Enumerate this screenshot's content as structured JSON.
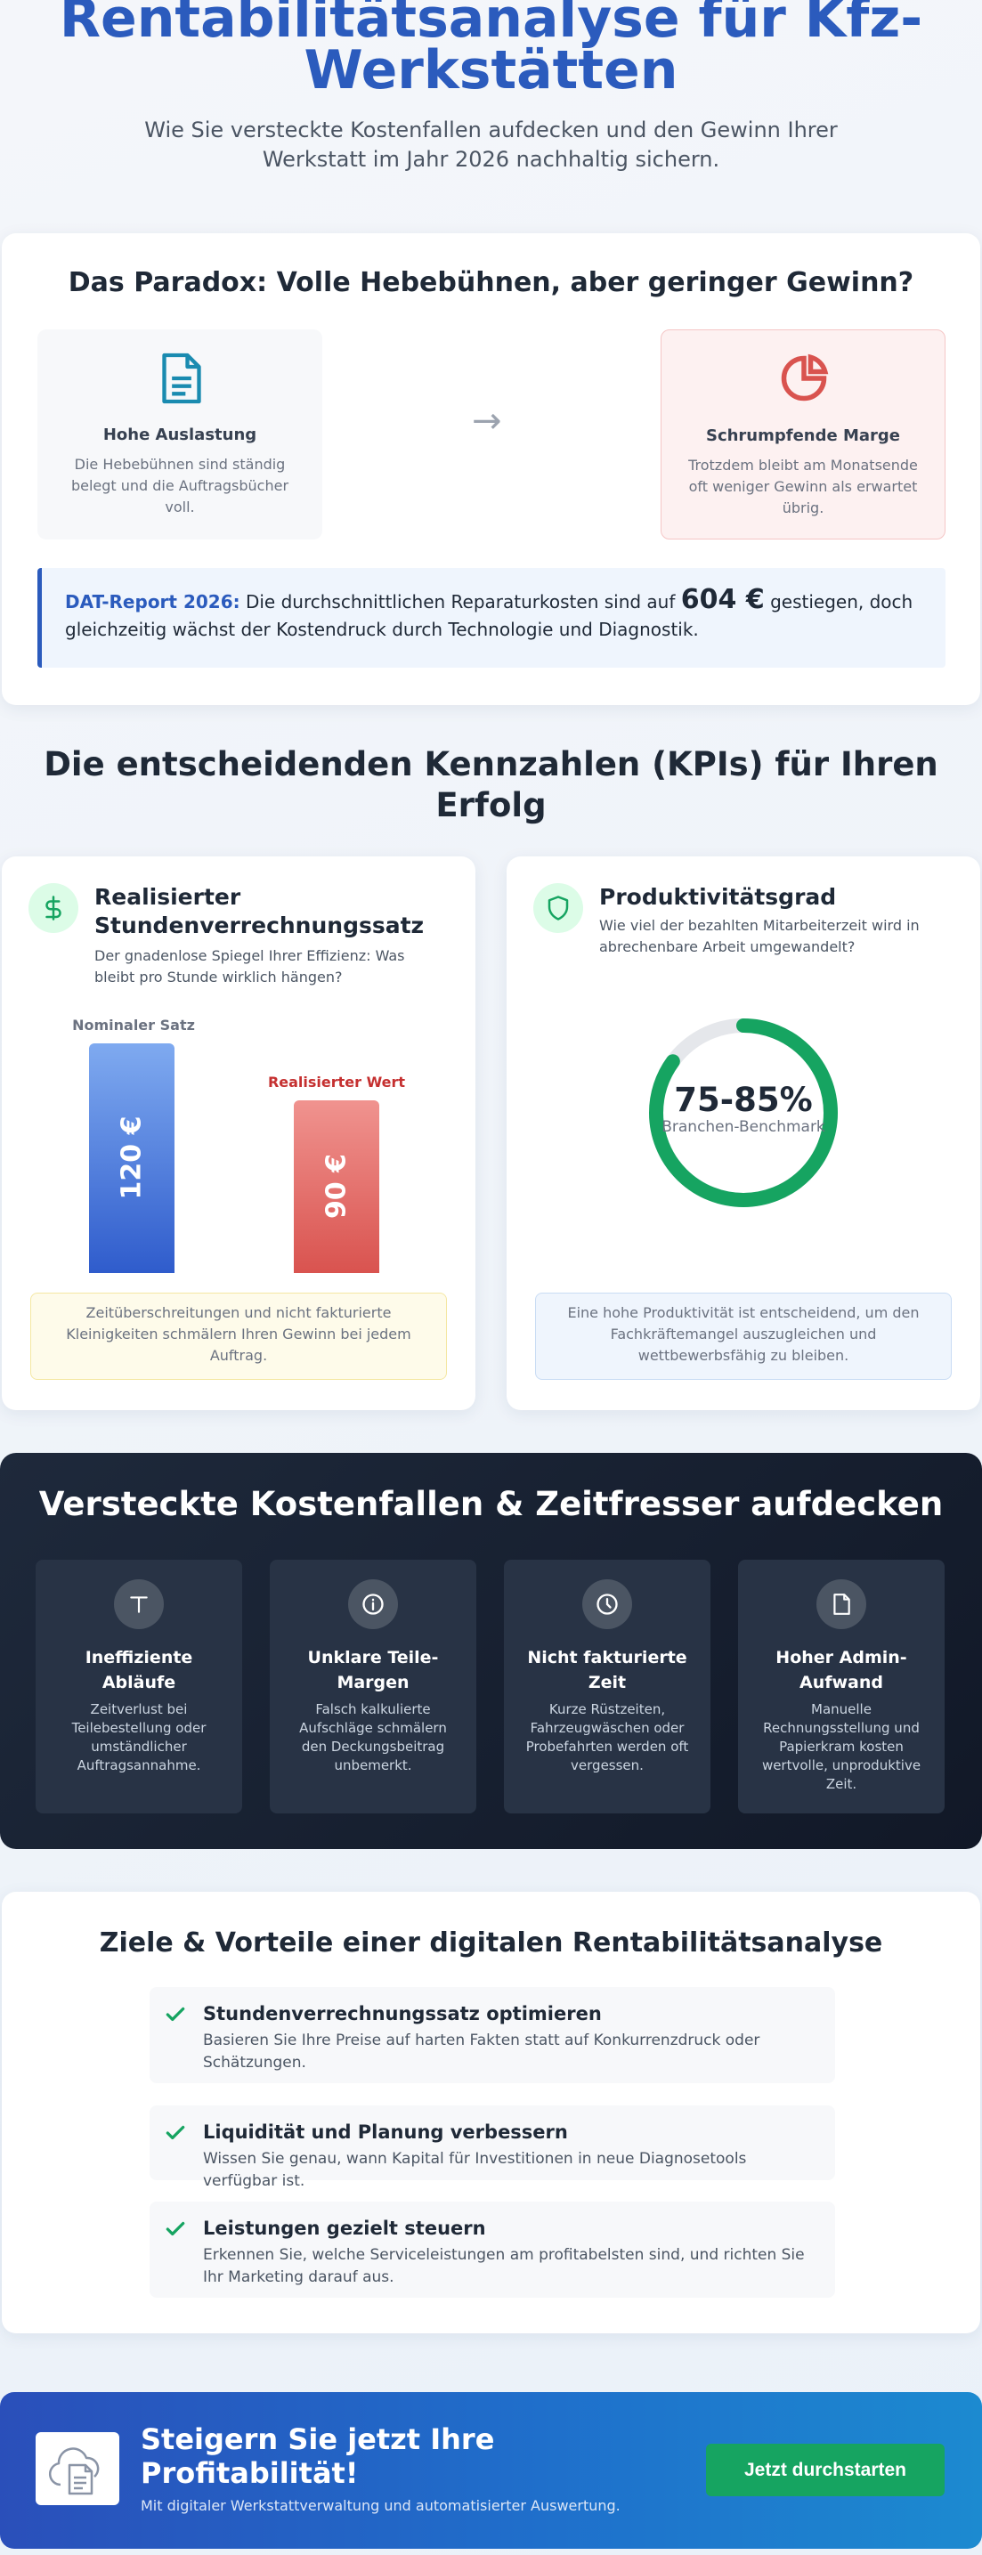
{
  "hero": {
    "title": "Rentabilitätsanalyse für Kfz-Werkstätten",
    "subtitle": "Wie Sie versteckte Kostenfallen aufdecken und den Gewinn Ihrer Werkstatt im Jahr 2026 nachhaltig sichern."
  },
  "paradox": {
    "heading": "Das Paradox: Volle Hebebühnen, aber geringer Gewinn?",
    "left": {
      "icon": "document-icon",
      "title": "Hohe Auslastung",
      "text": "Die Hebebühnen sind ständig belegt und die Auftragsbücher voll."
    },
    "arrow": "→",
    "right": {
      "icon": "pie-chart-icon",
      "title": "Schrumpfende Marge",
      "text": "Trotzdem bleibt am Monatsende oft weniger Gewinn als erwartet übrig."
    },
    "quote": {
      "label": "DAT-Report 2026:",
      "text_before": " Die durchschnittlichen Reparaturkosten sind auf ",
      "number": "604 €",
      "text_after": " gestiegen, doch gleichzeitig wächst der Kostendruck durch Technologie und Diagnostik."
    }
  },
  "kpis": {
    "heading": "Die entscheidenden Kennzahlen (KPIs) für Ihren Erfolg",
    "rate": {
      "icon": "dollar-icon",
      "title": "Realisierter Stundenverrechnungssatz",
      "desc": "Der gnadenlose Spiegel Ihrer Effizienz: Was bleibt pro Stunde wirklich hängen?",
      "nominal_label": "Nominaler Satz",
      "nominal_value": "120 €",
      "nominal_amount": 120,
      "real_label": "Realisierter Wert",
      "real_value": "90 €",
      "real_amount": 90,
      "note": "Zeitüberschreitungen und nicht fakturierte Kleinigkeiten schmälern Ihren Gewinn bei jedem Auftrag."
    },
    "productivity": {
      "icon": "shield-icon",
      "title": "Produktivitätsgrad",
      "desc": "Wie viel der bezahlten Mitarbeiterzeit wird in abrechenbare Arbeit umgewandelt?",
      "value": "75-85%",
      "value_label": "Branchen-Benchmark",
      "fill_percent": 85,
      "note": "Eine hohe Produktivität ist entscheidend, um den Fachkräftemangel auszugleichen und wettbewerbsfähig zu bleiben."
    }
  },
  "traps": {
    "heading": "Versteckte Kostenfallen & Zeitfresser aufdecken",
    "items": [
      {
        "icon": "type-icon",
        "title": "Ineffiziente Abläufe",
        "text": "Zeitverlust bei Teilebestellung oder umständlicher Auftragsannahme."
      },
      {
        "icon": "info-icon",
        "title": "Unklare Teile-Margen",
        "text": "Falsch kalkulierte Aufschläge schmälern den Deckungsbeitrag unbemerkt."
      },
      {
        "icon": "clock-icon",
        "title": "Nicht fakturierte Zeit",
        "text": "Kurze Rüstzeiten, Fahrzeugwäschen oder Probefahrten werden oft vergessen."
      },
      {
        "icon": "file-icon",
        "title": "Hoher Admin-Aufwand",
        "text": "Manuelle Rechnungsstellung und Papierkram kosten wertvolle, unproduktive Zeit."
      }
    ]
  },
  "goals": {
    "heading": "Ziele & Vorteile einer digitalen Rentabilitätsanalyse",
    "items": [
      {
        "title": "Stundenverrechnungssatz optimieren",
        "text": "Basieren Sie Ihre Preise auf harten Fakten statt auf Konkurrenzdruck oder Schätzungen."
      },
      {
        "title": "Liquidität und Planung verbessern",
        "text": "Wissen Sie genau, wann Kapital für Investitionen in neue Diagnosetools verfügbar ist."
      },
      {
        "title": "Leistungen gezielt steuern",
        "text": "Erkennen Sie, welche Serviceleistungen am profitabelsten sind, und richten Sie Ihr Marketing darauf aus."
      }
    ]
  },
  "cta": {
    "logo_icon": "cloud-document-icon",
    "heading": "Steigern Sie jetzt Ihre Profitabilität!",
    "sub": "Mit digitaler Werkstattverwaltung und automatisierter Auswertung.",
    "button": "Jetzt durchstarten"
  },
  "colors": {
    "primary": "#2b5bbd",
    "success": "#16a461",
    "danger": "#d9534f",
    "dark": "#1e293b"
  }
}
